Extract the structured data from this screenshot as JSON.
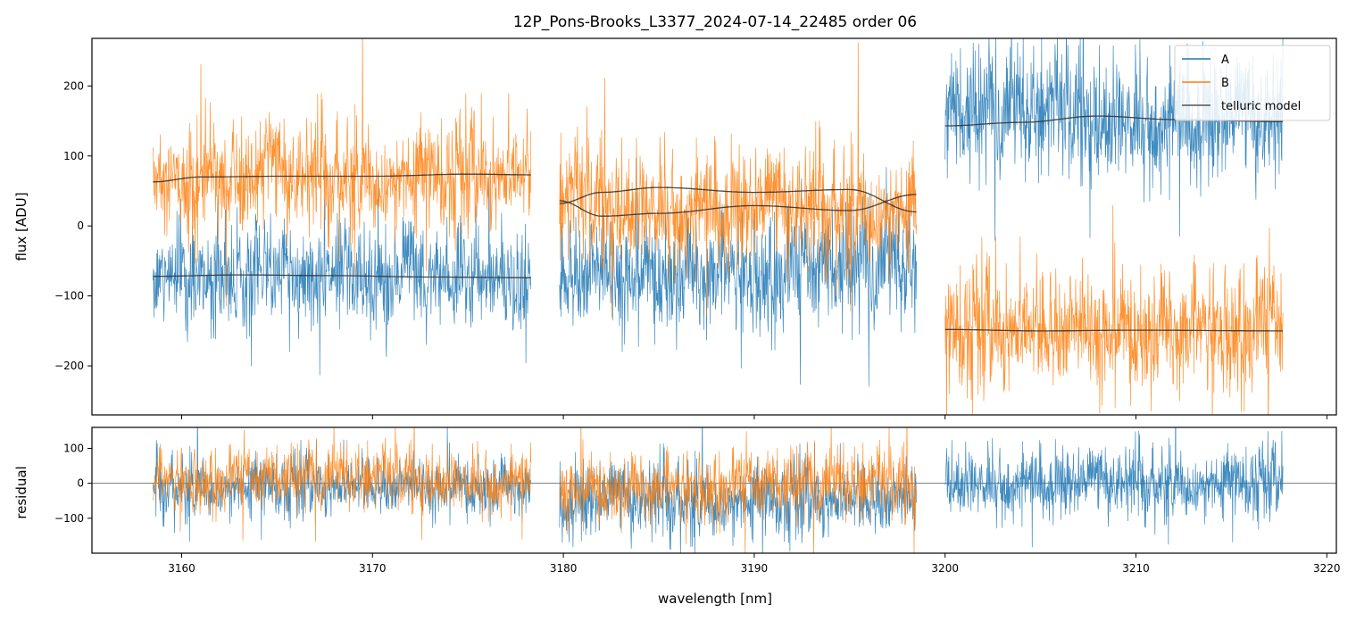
{
  "chart_data": {
    "type": "line",
    "title": "12P_Pons-Brooks_L3377_2024-07-14_22485  order 06",
    "xlabel": "wavelength [nm]",
    "xlim": [
      3155.3,
      3220.5
    ],
    "xticks": [
      3160,
      3170,
      3180,
      3190,
      3200,
      3210,
      3220
    ],
    "xtick_labels": [
      "3160",
      "3170",
      "3180",
      "3190",
      "3200",
      "3210",
      "3220"
    ],
    "legend": {
      "placement": "top-right",
      "entries": [
        "A",
        "B",
        "telluric model"
      ]
    },
    "colors": {
      "A": "#1f77b4",
      "B": "#ff7f0e",
      "model": "#333333"
    },
    "panels": [
      {
        "name": "flux",
        "ylabel": "flux [ADU]",
        "ylim": [
          -270,
          268
        ],
        "yticks": [
          -200,
          -100,
          0,
          100,
          200
        ],
        "ytick_labels": [
          "−200",
          "−100",
          "0",
          "100",
          "200"
        ],
        "segments": [
          {
            "x_range": [
              3158.5,
              3178.3
            ],
            "A": {
              "mean": -75,
              "noise_sd": 38
            },
            "B": {
              "mean": 70,
              "noise_sd": 40
            },
            "model_A": {
              "x": [
                3158.5,
                3163,
                3168,
                3173,
                3178.3
              ],
              "y": [
                -72,
                -70,
                -71,
                -73,
                -74
              ]
            },
            "model_B": {
              "x": [
                3158.5,
                3161,
                3165,
                3170,
                3175,
                3178.3
              ],
              "y": [
                63,
                70,
                71,
                71,
                74,
                73
              ]
            }
          },
          {
            "x_range": [
              3179.8,
              3198.5
            ],
            "A": {
              "mean": -70,
              "noise_sd": 42
            },
            "B": {
              "mean": 25,
              "noise_sd": 42
            },
            "model_A": {
              "x": [
                3179.8,
                3182,
                3185,
                3190,
                3195,
                3198.5
              ],
              "y": [
                32,
                48,
                55,
                48,
                52,
                20
              ]
            },
            "model_B": {
              "x": [
                3179.8,
                3182,
                3185,
                3190,
                3195,
                3198.5
              ],
              "y": [
                36,
                14,
                18,
                29,
                22,
                45
              ]
            }
          },
          {
            "x_range": [
              3200.0,
              3217.7
            ],
            "A": {
              "mean": 150,
              "noise_sd": 45
            },
            "B": {
              "mean": -150,
              "noise_sd": 45
            },
            "model_A": {
              "x": [
                3200.0,
                3204,
                3208,
                3212,
                3217.7
              ],
              "y": [
                143,
                148,
                157,
                152,
                149
              ]
            },
            "model_B": {
              "x": [
                3200.0,
                3205,
                3210,
                3217.7
              ],
              "y": [
                -148,
                -150,
                -149,
                -150
              ]
            }
          }
        ]
      },
      {
        "name": "residual",
        "ylabel": "residual",
        "ylim": [
          -200,
          160
        ],
        "yticks": [
          -100,
          0,
          100
        ],
        "ytick_labels": [
          "−100",
          "0",
          "100"
        ],
        "reference_line": 0,
        "segments": [
          {
            "x_range": [
              3158.5,
              3178.3
            ],
            "A": {
              "mean": -10,
              "noise_sd": 45
            },
            "B": {
              "mean": 5,
              "noise_sd": 45
            }
          },
          {
            "x_range": [
              3179.8,
              3198.5
            ],
            "A": {
              "mean": -50,
              "noise_sd": 55
            },
            "B": {
              "mean": -15,
              "noise_sd": 50
            }
          },
          {
            "x_range": [
              3200.0,
              3217.7
            ],
            "A": {
              "mean": 0,
              "noise_sd": 50
            }
          }
        ]
      }
    ]
  }
}
